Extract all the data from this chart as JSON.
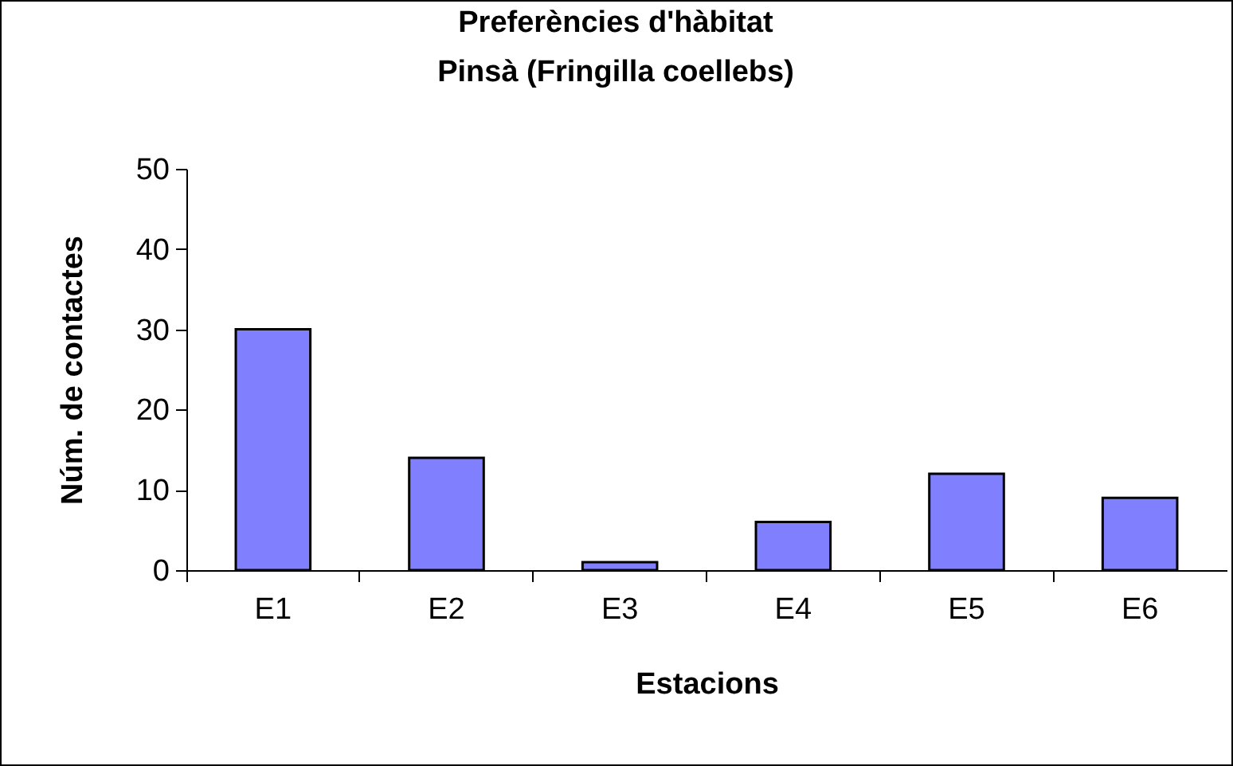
{
  "chart_data": {
    "type": "bar",
    "title": "Preferències d'hàbitat",
    "subtitle": "Pinsà (Fringilla coellebs)",
    "xlabel": "Estacions",
    "ylabel": "Núm. de contactes",
    "categories": [
      "E1",
      "E2",
      "E3",
      "E4",
      "E5",
      "E6"
    ],
    "values": [
      30,
      14,
      1,
      6,
      12,
      9
    ],
    "color": "#8080ff",
    "ylim": [
      0,
      50
    ],
    "yticks": [
      0,
      10,
      20,
      30,
      40,
      50
    ],
    "grid": false
  }
}
